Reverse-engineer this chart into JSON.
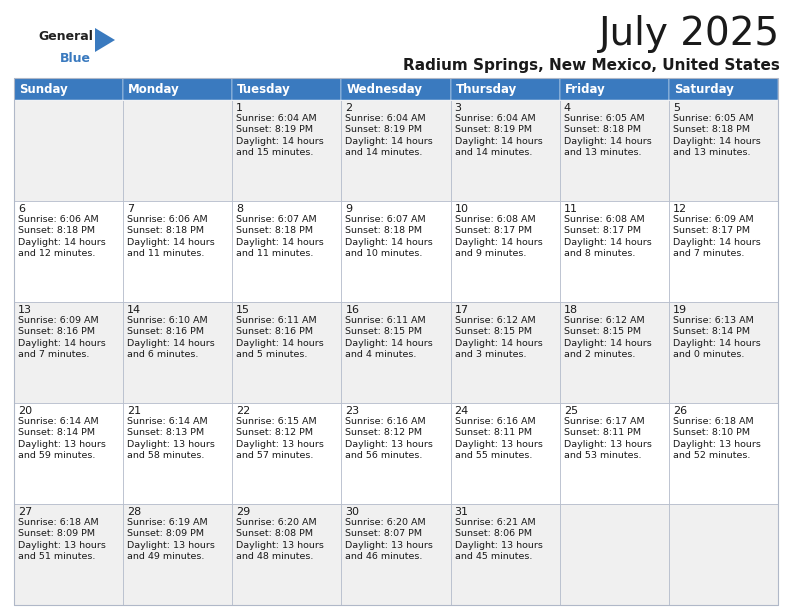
{
  "title": "July 2025",
  "subtitle": "Radium Springs, New Mexico, United States",
  "header_bg": "#3a7abf",
  "header_text": "#ffffff",
  "days_of_week": [
    "Sunday",
    "Monday",
    "Tuesday",
    "Wednesday",
    "Thursday",
    "Friday",
    "Saturday"
  ],
  "row_bg_light": "#f0f0f0",
  "row_bg_white": "#ffffff",
  "cell_border": "#b0b8c8",
  "text_color": "#1a1a1a",
  "calendar_data": [
    [
      "",
      "",
      "1\nSunrise: 6:04 AM\nSunset: 8:19 PM\nDaylight: 14 hours\nand 15 minutes.",
      "2\nSunrise: 6:04 AM\nSunset: 8:19 PM\nDaylight: 14 hours\nand 14 minutes.",
      "3\nSunrise: 6:04 AM\nSunset: 8:19 PM\nDaylight: 14 hours\nand 14 minutes.",
      "4\nSunrise: 6:05 AM\nSunset: 8:18 PM\nDaylight: 14 hours\nand 13 minutes.",
      "5\nSunrise: 6:05 AM\nSunset: 8:18 PM\nDaylight: 14 hours\nand 13 minutes."
    ],
    [
      "6\nSunrise: 6:06 AM\nSunset: 8:18 PM\nDaylight: 14 hours\nand 12 minutes.",
      "7\nSunrise: 6:06 AM\nSunset: 8:18 PM\nDaylight: 14 hours\nand 11 minutes.",
      "8\nSunrise: 6:07 AM\nSunset: 8:18 PM\nDaylight: 14 hours\nand 11 minutes.",
      "9\nSunrise: 6:07 AM\nSunset: 8:18 PM\nDaylight: 14 hours\nand 10 minutes.",
      "10\nSunrise: 6:08 AM\nSunset: 8:17 PM\nDaylight: 14 hours\nand 9 minutes.",
      "11\nSunrise: 6:08 AM\nSunset: 8:17 PM\nDaylight: 14 hours\nand 8 minutes.",
      "12\nSunrise: 6:09 AM\nSunset: 8:17 PM\nDaylight: 14 hours\nand 7 minutes."
    ],
    [
      "13\nSunrise: 6:09 AM\nSunset: 8:16 PM\nDaylight: 14 hours\nand 7 minutes.",
      "14\nSunrise: 6:10 AM\nSunset: 8:16 PM\nDaylight: 14 hours\nand 6 minutes.",
      "15\nSunrise: 6:11 AM\nSunset: 8:16 PM\nDaylight: 14 hours\nand 5 minutes.",
      "16\nSunrise: 6:11 AM\nSunset: 8:15 PM\nDaylight: 14 hours\nand 4 minutes.",
      "17\nSunrise: 6:12 AM\nSunset: 8:15 PM\nDaylight: 14 hours\nand 3 minutes.",
      "18\nSunrise: 6:12 AM\nSunset: 8:15 PM\nDaylight: 14 hours\nand 2 minutes.",
      "19\nSunrise: 6:13 AM\nSunset: 8:14 PM\nDaylight: 14 hours\nand 0 minutes."
    ],
    [
      "20\nSunrise: 6:14 AM\nSunset: 8:14 PM\nDaylight: 13 hours\nand 59 minutes.",
      "21\nSunrise: 6:14 AM\nSunset: 8:13 PM\nDaylight: 13 hours\nand 58 minutes.",
      "22\nSunrise: 6:15 AM\nSunset: 8:12 PM\nDaylight: 13 hours\nand 57 minutes.",
      "23\nSunrise: 6:16 AM\nSunset: 8:12 PM\nDaylight: 13 hours\nand 56 minutes.",
      "24\nSunrise: 6:16 AM\nSunset: 8:11 PM\nDaylight: 13 hours\nand 55 minutes.",
      "25\nSunrise: 6:17 AM\nSunset: 8:11 PM\nDaylight: 13 hours\nand 53 minutes.",
      "26\nSunrise: 6:18 AM\nSunset: 8:10 PM\nDaylight: 13 hours\nand 52 minutes."
    ],
    [
      "27\nSunrise: 6:18 AM\nSunset: 8:09 PM\nDaylight: 13 hours\nand 51 minutes.",
      "28\nSunrise: 6:19 AM\nSunset: 8:09 PM\nDaylight: 13 hours\nand 49 minutes.",
      "29\nSunrise: 6:20 AM\nSunset: 8:08 PM\nDaylight: 13 hours\nand 48 minutes.",
      "30\nSunrise: 6:20 AM\nSunset: 8:07 PM\nDaylight: 13 hours\nand 46 minutes.",
      "31\nSunrise: 6:21 AM\nSunset: 8:06 PM\nDaylight: 13 hours\nand 45 minutes.",
      "",
      ""
    ]
  ],
  "logo_text1": "General",
  "logo_text2": "Blue",
  "logo_color": "#3a7abf",
  "bg_color": "#ffffff",
  "title_fontsize": 28,
  "subtitle_fontsize": 11,
  "header_fontsize": 8.5,
  "day_num_fontsize": 8,
  "cell_text_fontsize": 6.8
}
